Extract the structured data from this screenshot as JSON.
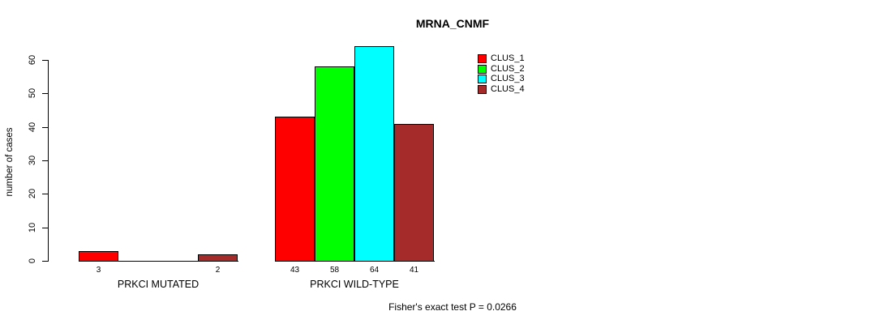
{
  "chart_data": {
    "type": "bar",
    "title": "MRNA_CNMF",
    "ylabel": "number of cases",
    "xlabel": "",
    "ylim": [
      0,
      65
    ],
    "yticks": [
      0,
      10,
      20,
      30,
      40,
      50,
      60
    ],
    "grid": false,
    "legend_position": "top-right",
    "categories": [
      "PRKCI MUTATED",
      "PRKCI WILD-TYPE"
    ],
    "series": [
      {
        "name": "CLUS_1",
        "color": "#FF0000",
        "values": [
          3,
          43
        ]
      },
      {
        "name": "CLUS_2",
        "color": "#00FF00",
        "values": [
          0,
          58
        ]
      },
      {
        "name": "CLUS_3",
        "color": "#00FFFF",
        "values": [
          0,
          64
        ]
      },
      {
        "name": "CLUS_4",
        "color": "#A52A2A",
        "values": [
          2,
          41
        ]
      }
    ],
    "bar_value_labels": [
      [
        "3",
        "",
        "",
        "2"
      ],
      [
        "43",
        "58",
        "64",
        "41"
      ]
    ],
    "annotation": "Fisher's exact test P = 0.0266"
  }
}
